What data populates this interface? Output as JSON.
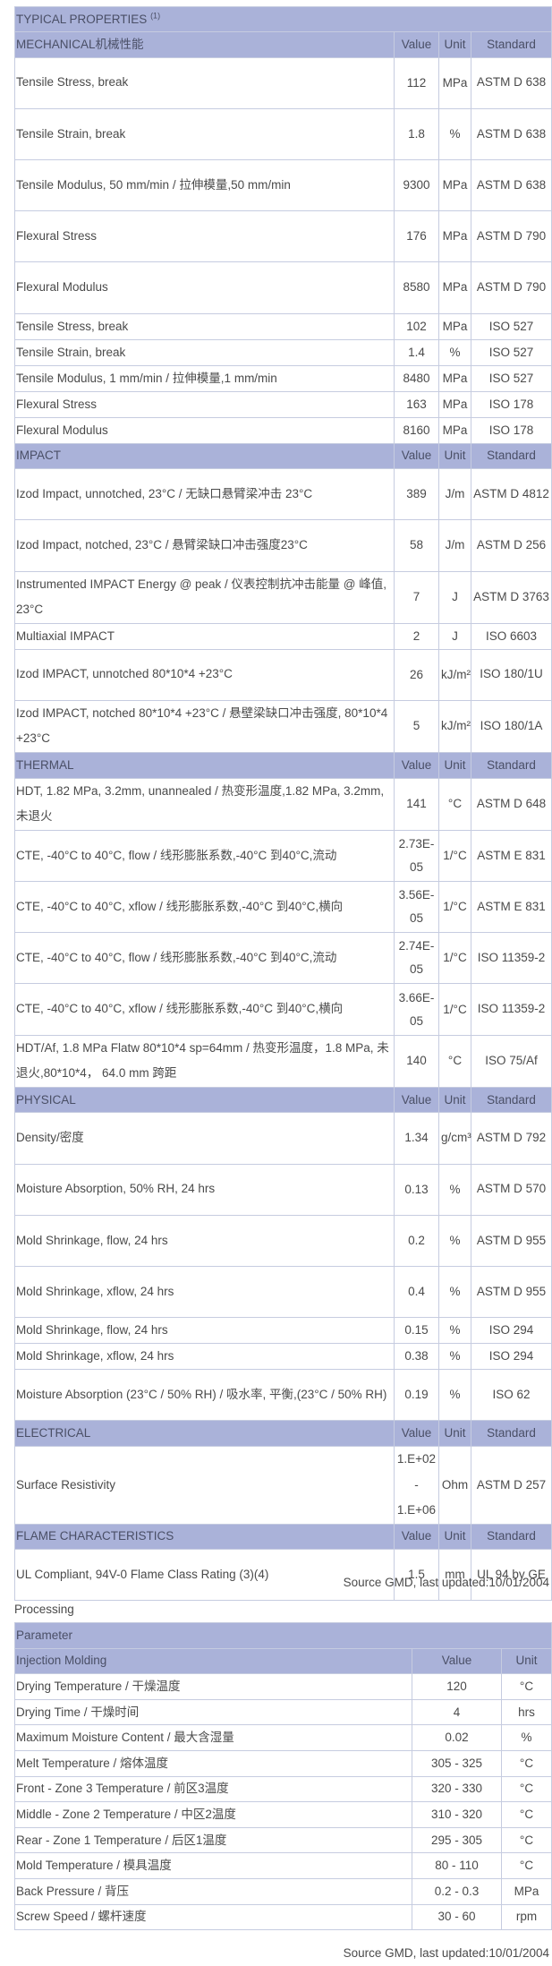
{
  "title": "TYPICAL PROPERTIES",
  "title_note": "(1)",
  "col_headers": {
    "value": "Value",
    "unit": "Unit",
    "standard": "Standard"
  },
  "sections": [
    {
      "name": "MECHANICAL机械性能",
      "rows": [
        {
          "property": "Tensile Stress, break",
          "value": "112",
          "unit": "MPa",
          "standard": "ASTM D 638"
        },
        {
          "property": "Tensile Strain, break",
          "value": "1.8",
          "unit": "%",
          "standard": "ASTM D 638"
        },
        {
          "property": "Tensile Modulus, 50 mm/min / 拉伸模量,50 mm/min",
          "value": "9300",
          "unit": "MPa",
          "standard": "ASTM D 638"
        },
        {
          "property": "Flexural Stress",
          "value": "176",
          "unit": "MPa",
          "standard": "ASTM D 790"
        },
        {
          "property": "Flexural Modulus",
          "value": "8580",
          "unit": "MPa",
          "standard": "ASTM D 790"
        },
        {
          "property": "Tensile Stress, break",
          "value": "102",
          "unit": "MPa",
          "standard": "ISO 527"
        },
        {
          "property": "Tensile Strain, break",
          "value": "1.4",
          "unit": "%",
          "standard": "ISO 527"
        },
        {
          "property": "Tensile Modulus, 1 mm/min / 拉伸模量,1 mm/min",
          "value": "8480",
          "unit": "MPa",
          "standard": "ISO 527"
        },
        {
          "property": "Flexural Stress",
          "value": "163",
          "unit": "MPa",
          "standard": "ISO 178"
        },
        {
          "property": "Flexural Modulus",
          "value": "8160",
          "unit": "MPa",
          "standard": "ISO 178"
        }
      ]
    },
    {
      "name": "IMPACT",
      "rows": [
        {
          "property": "Izod Impact, unnotched, 23°C / 无缺口悬臂梁冲击 23°C",
          "value": "389",
          "unit": "J/m",
          "standard": "ASTM D 4812"
        },
        {
          "property": "Izod Impact, notched, 23°C / 悬臂梁缺口冲击强度23°C",
          "value": "58",
          "unit": "J/m",
          "standard": "ASTM D 256"
        },
        {
          "property": "Instrumented IMPACT Energy @ peak / 仪表控制抗冲击能量 @ 峰值, 23°C",
          "value": "7",
          "unit": "J",
          "standard": "ASTM D 3763"
        },
        {
          "property": "Multiaxial IMPACT",
          "value": "2",
          "unit": "J",
          "standard": "ISO 6603"
        },
        {
          "property": "Izod IMPACT, unnotched 80*10*4 +23°C",
          "value": "26",
          "unit": "kJ/m²",
          "standard": "ISO 180/1U"
        },
        {
          "property": "Izod IMPACT, notched 80*10*4 +23°C / 悬壁梁缺口冲击强度, 80*10*4 +23°C",
          "value": "5",
          "unit": "kJ/m²",
          "standard": "ISO 180/1A"
        }
      ]
    },
    {
      "name": "THERMAL",
      "rows": [
        {
          "property": "HDT, 1.82 MPa, 3.2mm, unannealed / 热变形温度,1.82 MPa, 3.2mm,未退火",
          "value": "141",
          "unit": "°C",
          "standard": "ASTM D 648"
        },
        {
          "property": "CTE, -40°C to 40°C, flow / 线形膨胀系数,-40°C 到40°C,流动",
          "value": "2.73E-05",
          "unit": "1/°C",
          "standard": "ASTM E 831"
        },
        {
          "property": "CTE, -40°C to 40°C, xflow / 线形膨胀系数,-40°C 到40°C,横向",
          "value": "3.56E-05",
          "unit": "1/°C",
          "standard": "ASTM E 831"
        },
        {
          "property": "CTE, -40°C to 40°C, flow / 线形膨胀系数,-40°C 到40°C,流动",
          "value": "2.74E-05",
          "unit": "1/°C",
          "standard": "ISO 11359-2"
        },
        {
          "property": "CTE, -40°C to 40°C, xflow / 线形膨胀系数,-40°C 到40°C,横向",
          "value": "3.66E-05",
          "unit": "1/°C",
          "standard": "ISO 11359-2"
        },
        {
          "property": "HDT/Af, 1.8 MPa Flatw 80*10*4 sp=64mm / 热变形温度，1.8 MPa, 未退火,80*10*4， 64.0 mm 跨距",
          "value": "140",
          "unit": "°C",
          "standard": "ISO 75/Af"
        }
      ]
    },
    {
      "name": "PHYSICAL",
      "rows": [
        {
          "property": "Density/密度",
          "value": "1.34",
          "unit": "g/cm³",
          "standard": "ASTM D 792"
        },
        {
          "property": "Moisture Absorption, 50% RH, 24 hrs",
          "value": "0.13",
          "unit": "%",
          "standard": "ASTM D 570"
        },
        {
          "property": "Mold Shrinkage, flow, 24 hrs",
          "value": "0.2",
          "unit": "%",
          "standard": "ASTM D 955"
        },
        {
          "property": "Mold Shrinkage, xflow, 24 hrs",
          "value": "0.4",
          "unit": "%",
          "standard": "ASTM D 955"
        },
        {
          "property": "Mold Shrinkage, flow, 24 hrs",
          "value": "0.15",
          "unit": "%",
          "standard": "ISO 294"
        },
        {
          "property": "Mold Shrinkage, xflow, 24 hrs",
          "value": "0.38",
          "unit": "%",
          "standard": "ISO 294"
        },
        {
          "property": "Moisture Absorption (23°C / 50% RH) / 吸水率, 平衡,(23°C / 50% RH)",
          "value": "0.19",
          "unit": "%",
          "standard": "ISO 62"
        }
      ]
    },
    {
      "name": "ELECTRICAL",
      "rows": [
        {
          "property": "Surface Resistivity",
          "value": "1.E+02 - 1.E+06",
          "unit": "Ohm",
          "standard": "ASTM D 257"
        }
      ]
    },
    {
      "name": "FLAME CHARACTERISTICS",
      "rows": [
        {
          "property": "UL Compliant, 94V-0 Flame Class Rating (3)(4)",
          "value": "1.5",
          "unit": "mm",
          "standard": "UL 94 by GE"
        }
      ]
    }
  ],
  "source_note": "Source GMD, last updated:10/01/2004",
  "processing": {
    "title": "Processing",
    "parameter_label": "Parameter",
    "section": "Injection Molding",
    "col_headers": {
      "value": "Value",
      "unit": "Unit"
    },
    "rows": [
      {
        "parameter": "Drying Temperature / 干燥温度",
        "value": "120",
        "unit": "°C"
      },
      {
        "parameter": "Drying Time / 干燥时间",
        "value": "4",
        "unit": "hrs"
      },
      {
        "parameter": "Maximum Moisture Content / 最大含湿量",
        "value": "0.02",
        "unit": "%"
      },
      {
        "parameter": "Melt Temperature / 熔体温度",
        "value": "305 - 325",
        "unit": "°C"
      },
      {
        "parameter": "Front - Zone 3 Temperature / 前区3温度",
        "value": "320 - 330",
        "unit": "°C"
      },
      {
        "parameter": "Middle - Zone 2 Temperature / 中区2温度",
        "value": "310 - 320",
        "unit": "°C"
      },
      {
        "parameter": "Rear - Zone 1 Temperature / 后区1温度",
        "value": "295 - 305",
        "unit": "°C"
      },
      {
        "parameter": "Mold Temperature / 模具温度",
        "value": "80 - 110",
        "unit": "°C"
      },
      {
        "parameter": "Back Pressure / 背压",
        "value": "0.2 - 0.3",
        "unit": "MPa"
      },
      {
        "parameter": "Screw Speed / 螺杆速度",
        "value": "30 - 60",
        "unit": "rpm"
      }
    ],
    "source_note": "Source GMD, last updated:10/01/2004"
  }
}
